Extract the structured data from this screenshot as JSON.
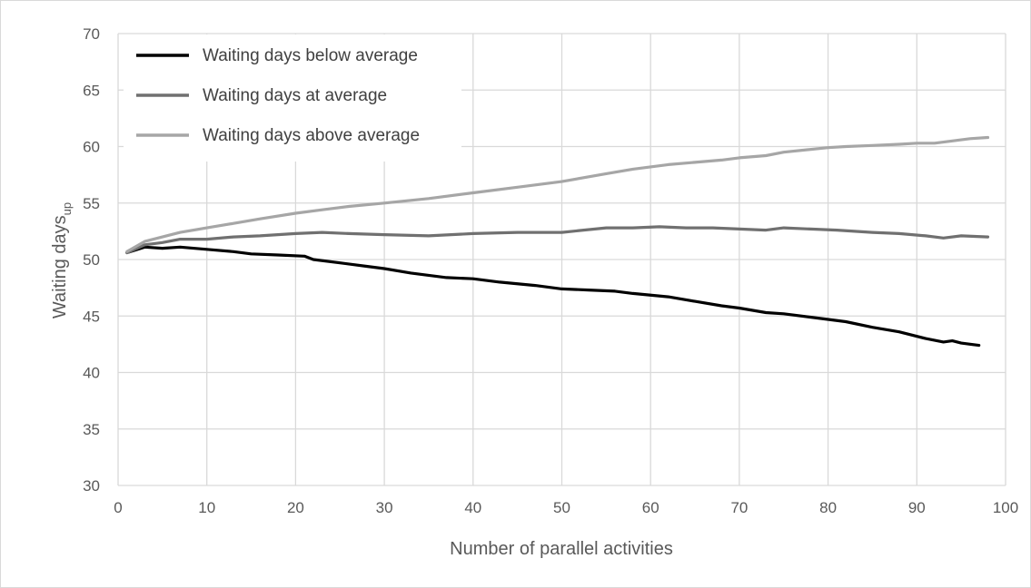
{
  "chart_data": {
    "type": "line",
    "title": "",
    "xlabel": "Number of parallel activities",
    "ylabel_main": "Waiting days",
    "ylabel_sub": "up",
    "xlim": [
      0,
      100
    ],
    "ylim": [
      30,
      70
    ],
    "xticks": [
      0,
      10,
      20,
      30,
      40,
      50,
      60,
      70,
      80,
      90,
      100
    ],
    "yticks": [
      30,
      35,
      40,
      45,
      50,
      55,
      60,
      65,
      70
    ],
    "grid": true,
    "legend_position": "top-left",
    "series": [
      {
        "name": "Waiting days below average",
        "color": "#000000",
        "x": [
          1,
          3,
          5,
          7,
          10,
          13,
          15,
          18,
          21,
          22,
          25,
          28,
          30,
          33,
          37,
          40,
          43,
          47,
          50,
          53,
          56,
          58,
          62,
          65,
          68,
          70,
          73,
          75,
          78,
          82,
          85,
          88,
          91,
          93,
          94,
          95,
          97
        ],
        "y": [
          50.6,
          51.1,
          51.0,
          51.1,
          50.9,
          50.7,
          50.5,
          50.4,
          50.3,
          50.0,
          49.7,
          49.4,
          49.2,
          48.8,
          48.4,
          48.3,
          48.0,
          47.7,
          47.4,
          47.3,
          47.2,
          47.0,
          46.7,
          46.3,
          45.9,
          45.7,
          45.3,
          45.2,
          44.9,
          44.5,
          44.0,
          43.6,
          43.0,
          42.7,
          42.8,
          42.6,
          42.4
        ]
      },
      {
        "name": "Waiting days at average",
        "color": "#707070",
        "x": [
          1,
          3,
          5,
          7,
          10,
          13,
          16,
          20,
          23,
          26,
          30,
          35,
          40,
          45,
          50,
          55,
          58,
          61,
          64,
          67,
          70,
          73,
          75,
          78,
          81,
          85,
          88,
          91,
          93,
          95,
          98
        ],
        "y": [
          50.6,
          51.3,
          51.5,
          51.8,
          51.8,
          52.0,
          52.1,
          52.3,
          52.4,
          52.3,
          52.2,
          52.1,
          52.3,
          52.4,
          52.4,
          52.8,
          52.8,
          52.9,
          52.8,
          52.8,
          52.7,
          52.6,
          52.8,
          52.7,
          52.6,
          52.4,
          52.3,
          52.1,
          51.9,
          52.1,
          52.0
        ]
      },
      {
        "name": "Waiting days above average",
        "color": "#a6a6a6",
        "x": [
          1,
          3,
          5,
          7,
          10,
          13,
          16,
          20,
          23,
          26,
          30,
          35,
          40,
          45,
          50,
          55,
          58,
          62,
          65,
          68,
          70,
          73,
          75,
          80,
          82,
          85,
          88,
          90,
          92,
          94,
          96,
          98
        ],
        "y": [
          50.7,
          51.6,
          52.0,
          52.4,
          52.8,
          53.2,
          53.6,
          54.1,
          54.4,
          54.7,
          55.0,
          55.4,
          55.9,
          56.4,
          56.9,
          57.6,
          58.0,
          58.4,
          58.6,
          58.8,
          59.0,
          59.2,
          59.5,
          59.9,
          60.0,
          60.1,
          60.2,
          60.3,
          60.3,
          60.5,
          60.7,
          60.8
        ]
      }
    ]
  }
}
